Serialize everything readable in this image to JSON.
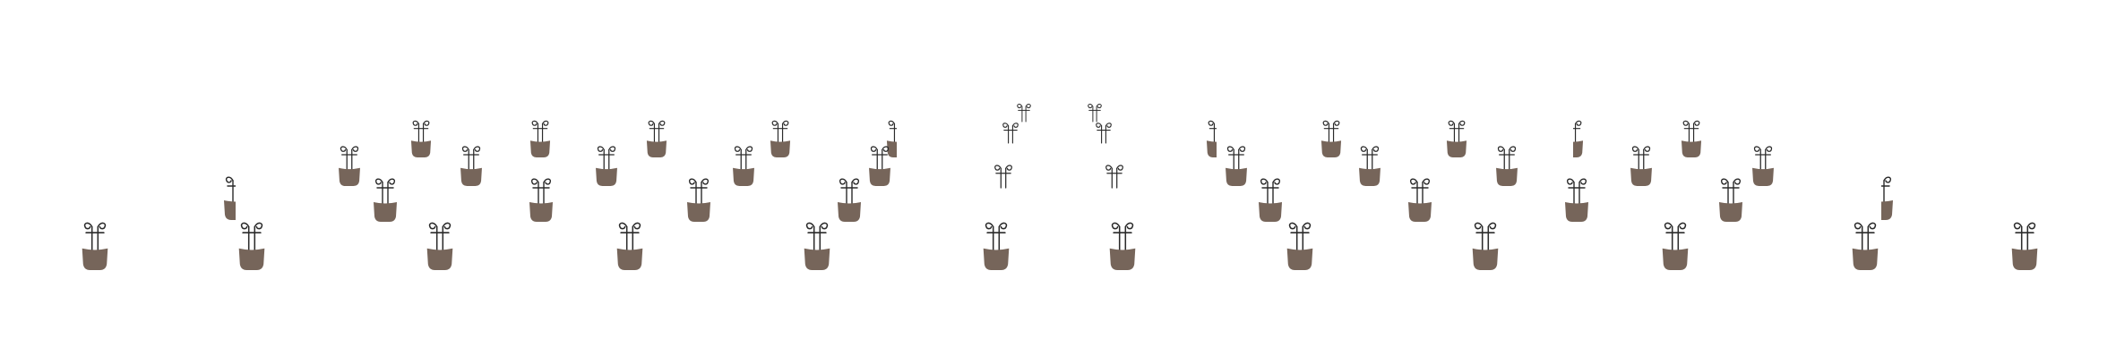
{
  "scene": {
    "background": "#ffffff",
    "pot_color": "#76655a",
    "stem_color": "#2b2b2b",
    "item_icon": "sprout-in-pot-icon"
  }
}
